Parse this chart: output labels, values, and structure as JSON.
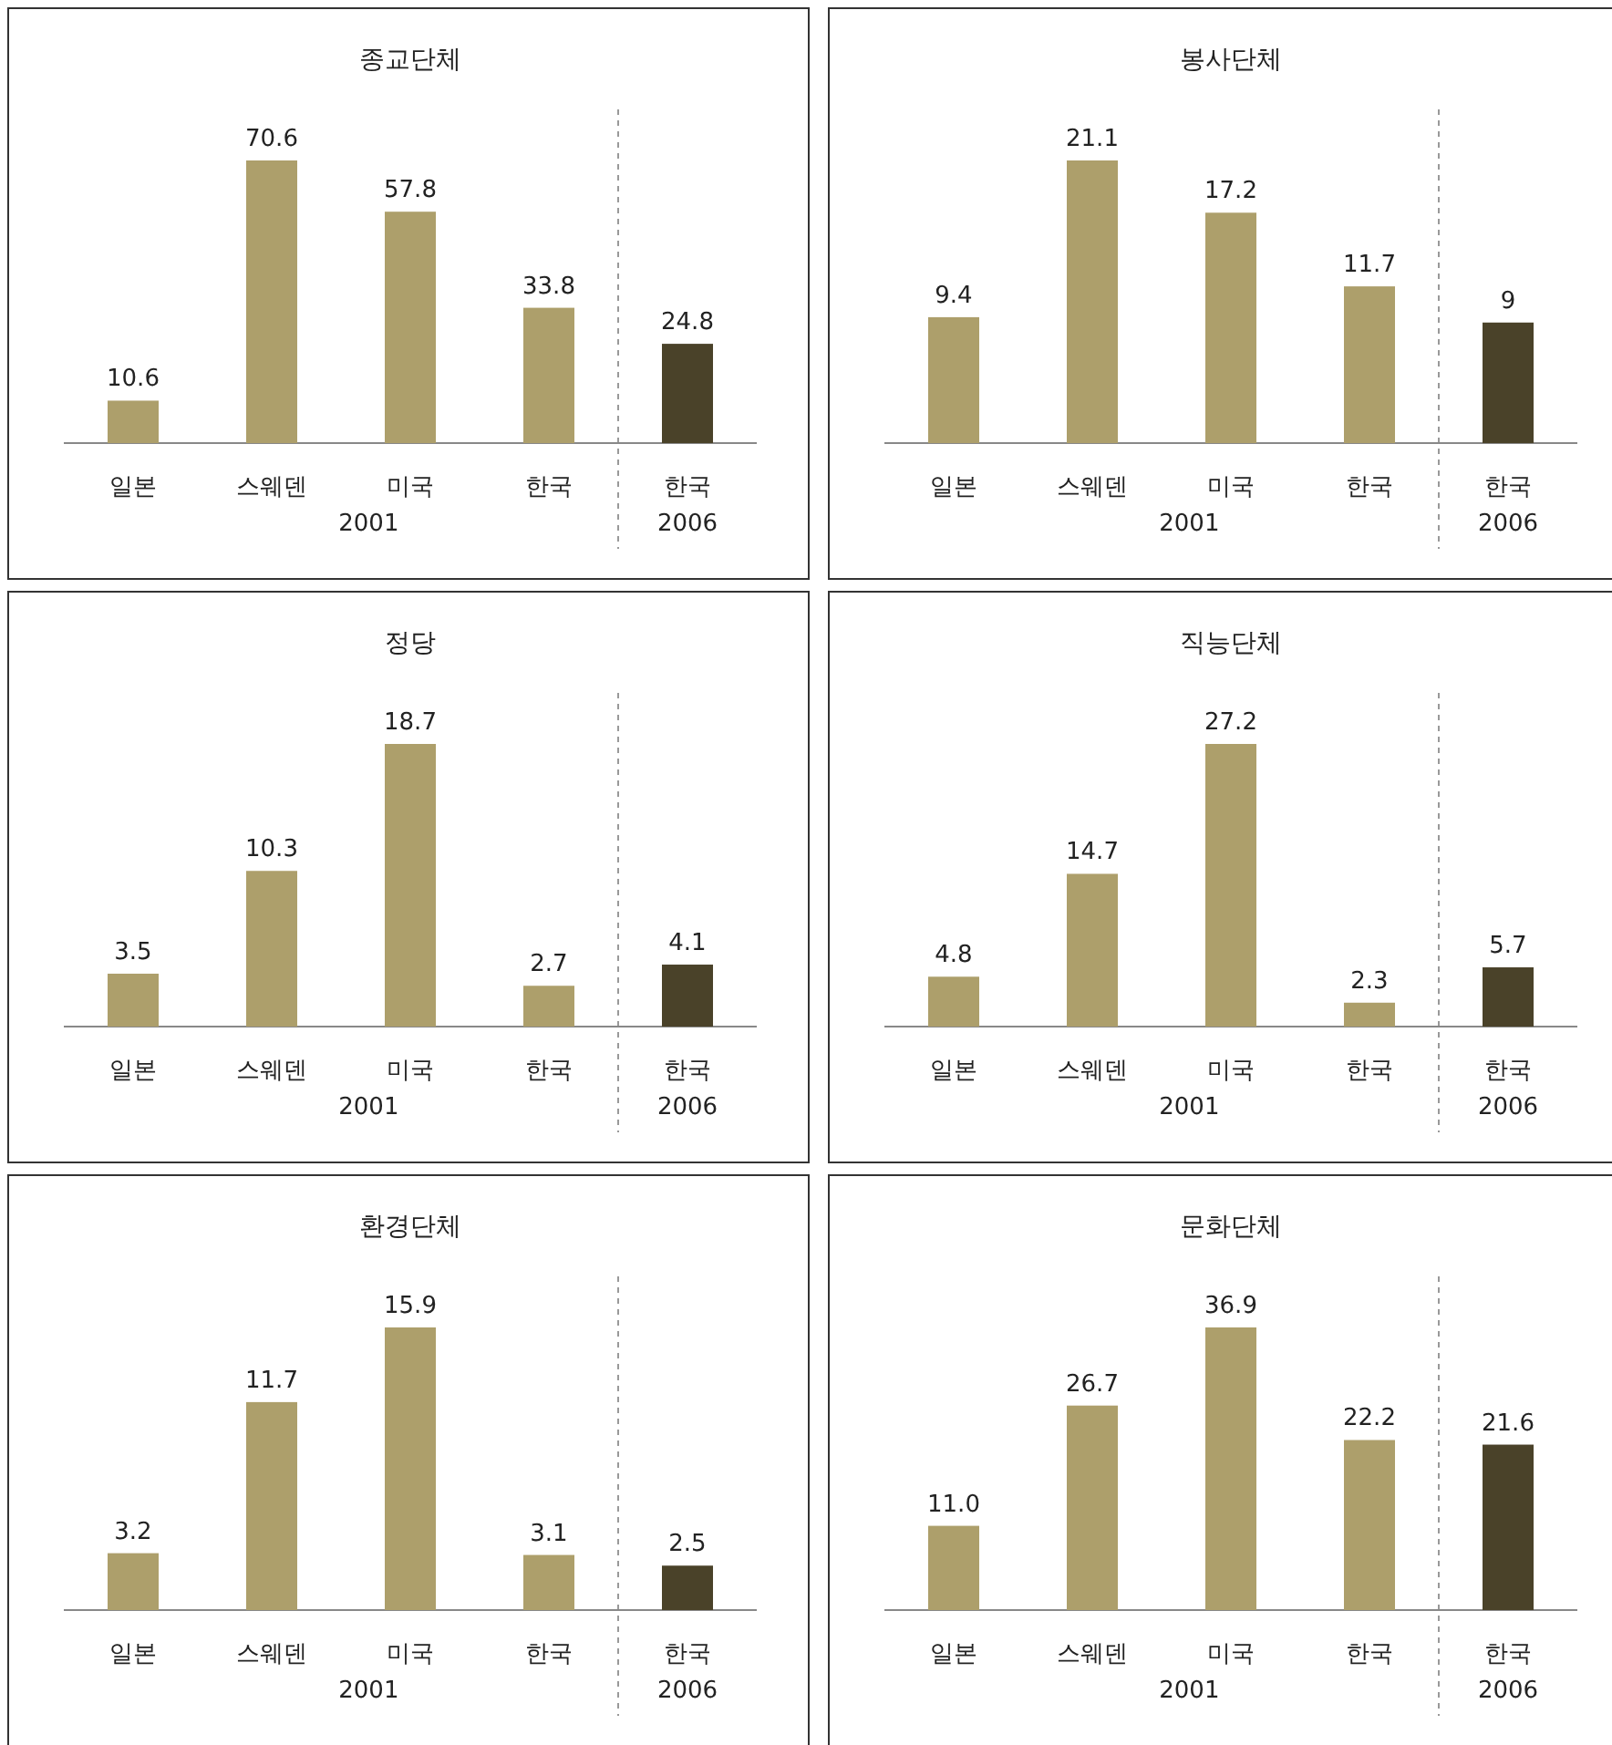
{
  "chart_data": [
    {
      "type": "bar",
      "title": "종교단체",
      "categories": [
        "일본",
        "스웨덴",
        "미국",
        "한국",
        "한국\n2006"
      ],
      "values": [
        10.6,
        70.6,
        57.8,
        33.8,
        24.8
      ],
      "value_labels": [
        "10.6",
        "70.6",
        "57.8",
        "33.8",
        "24.8"
      ],
      "colors": [
        "#ad9f6b",
        "#ad9f6b",
        "#ad9f6b",
        "#ad9f6b",
        "#4a4229"
      ],
      "annotations": [
        "2001"
      ]
    },
    {
      "type": "bar",
      "title": "봉사단체",
      "categories": [
        "일본",
        "스웨덴",
        "미국",
        "한국",
        "한국\n2006"
      ],
      "values": [
        9.4,
        21.1,
        17.2,
        11.7,
        9
      ],
      "value_labels": [
        "9.4",
        "21.1",
        "17.2",
        "11.7",
        "9"
      ],
      "colors": [
        "#ad9f6b",
        "#ad9f6b",
        "#ad9f6b",
        "#ad9f6b",
        "#4a4229"
      ],
      "annotations": [
        "2001"
      ]
    },
    {
      "type": "bar",
      "title": "정당",
      "categories": [
        "일본",
        "스웨덴",
        "미국",
        "한국",
        "한국\n2006"
      ],
      "values": [
        3.5,
        10.3,
        18.7,
        2.7,
        4.1
      ],
      "value_labels": [
        "3.5",
        "10.3",
        "18.7",
        "2.7",
        "4.1"
      ],
      "colors": [
        "#ad9f6b",
        "#ad9f6b",
        "#ad9f6b",
        "#ad9f6b",
        "#4a4229"
      ],
      "annotations": [
        "2001"
      ]
    },
    {
      "type": "bar",
      "title": "직능단체",
      "categories": [
        "일본",
        "스웨덴",
        "미국",
        "한국",
        "한국\n2006"
      ],
      "values": [
        4.8,
        14.7,
        27.2,
        2.3,
        5.7
      ],
      "value_labels": [
        "4.8",
        "14.7",
        "27.2",
        "2.3",
        "5.7"
      ],
      "colors": [
        "#ad9f6b",
        "#ad9f6b",
        "#ad9f6b",
        "#ad9f6b",
        "#4a4229"
      ],
      "annotations": [
        "2001"
      ]
    },
    {
      "type": "bar",
      "title": "환경단체",
      "categories": [
        "일본",
        "스웨덴",
        "미국",
        "한국",
        "한국\n2006"
      ],
      "values": [
        3.2,
        11.7,
        15.9,
        3.1,
        2.5
      ],
      "value_labels": [
        "3.2",
        "11.7",
        "15.9",
        "3.1",
        "2.5"
      ],
      "colors": [
        "#ad9f6b",
        "#ad9f6b",
        "#ad9f6b",
        "#ad9f6b",
        "#4a4229"
      ],
      "annotations": [
        "2001"
      ]
    },
    {
      "type": "bar",
      "title": "문화단체",
      "categories": [
        "일본",
        "스웨덴",
        "미국",
        "한국",
        "한국\n2006"
      ],
      "values": [
        11.0,
        26.7,
        36.9,
        22.2,
        21.6
      ],
      "value_labels": [
        "11.0",
        "26.7",
        "36.9",
        "22.2",
        "21.6"
      ],
      "colors": [
        "#ad9f6b",
        "#ad9f6b",
        "#ad9f6b",
        "#ad9f6b",
        "#4a4229"
      ],
      "annotations": [
        "2001"
      ]
    }
  ]
}
